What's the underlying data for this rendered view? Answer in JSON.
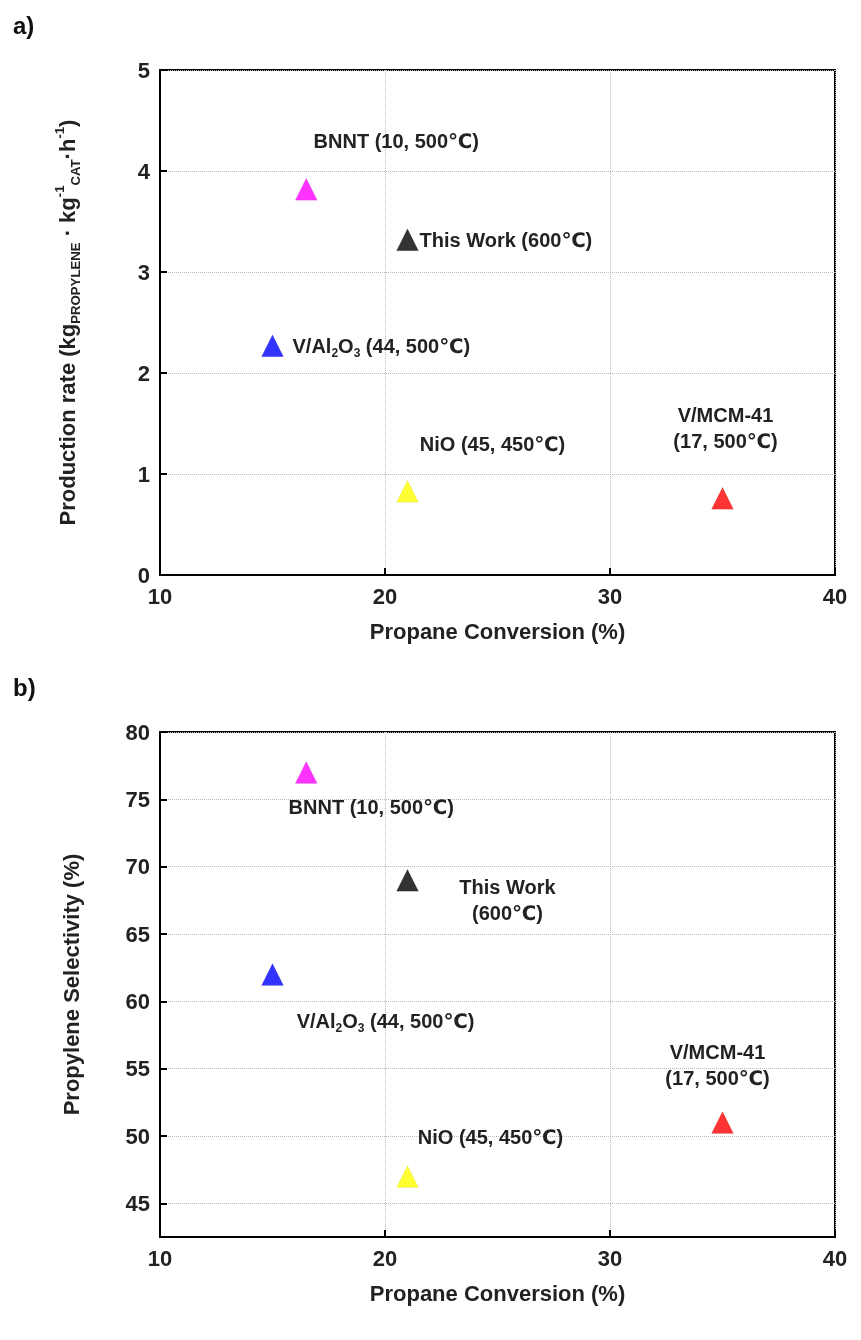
{
  "chart_data": [
    {
      "type": "scatter",
      "title": "a)",
      "xlabel": "Propane Conversion (%)",
      "ylabel": "Production rate (kg$_{PROPYLENE}$ · kg$^{-1}$$_{CAT}$·h$^{-1}$)",
      "x": [
        16.5,
        21,
        15,
        21,
        35
      ],
      "values": [
        3.82,
        3.32,
        2.27,
        0.83,
        0.76
      ],
      "colors": [
        "#ff00ff",
        "#000000",
        "#0000ff",
        "#ffff00",
        "#ff0000"
      ],
      "marker": "triangle",
      "xlim": [
        10,
        40
      ],
      "xticks": [
        10,
        20,
        30,
        40
      ],
      "ylim": [
        0,
        5
      ],
      "yticks": [
        0,
        1,
        2,
        3,
        4,
        5
      ],
      "grid": true,
      "annotations": [
        {
          "text": "BNNT (10, 500℃)",
          "x": 16.5,
          "y": 3.82
        },
        {
          "text": "This Work (600℃)",
          "x": 21,
          "y": 3.32
        },
        {
          "text": "V/Al$_{2}$O$_{3}$ (44, 500℃)",
          "x": 15,
          "y": 2.27
        },
        {
          "text": "NiO (45, 450℃)",
          "x": 21,
          "y": 0.83
        },
        {
          "text": "V/MCM-41\n(17, 500℃)",
          "x": 35,
          "y": 0.76
        }
      ]
    },
    {
      "type": "scatter",
      "title": "b)",
      "xlabel": "Propane Conversion (%)",
      "ylabel": "Propylene Selectivity (%)",
      "x": [
        16.5,
        21,
        15,
        21,
        35
      ],
      "values": [
        77,
        69,
        62,
        47,
        51
      ],
      "colors": [
        "#ff00ff",
        "#000000",
        "#0000ff",
        "#ffff00",
        "#ff0000"
      ],
      "marker": "triangle",
      "xlim": [
        10,
        40
      ],
      "xticks": [
        10,
        20,
        30,
        40
      ],
      "ylim": [
        42.5,
        80
      ],
      "yticks": [
        45,
        50,
        55,
        60,
        65,
        70,
        75,
        80
      ],
      "grid": true,
      "annotations": [
        {
          "text": "BNNT (10, 500℃)",
          "x": 16.5,
          "y": 77
        },
        {
          "text": "This Work\n(600℃)",
          "x": 21,
          "y": 69
        },
        {
          "text": "V/Al$_{2}$O$_{3}$ (44, 500℃)",
          "x": 15,
          "y": 62
        },
        {
          "text": "NiO (45, 450℃)",
          "x": 21,
          "y": 47
        },
        {
          "text": "V/MCM-41\n(17, 500℃)",
          "x": 35,
          "y": 51
        }
      ]
    }
  ]
}
